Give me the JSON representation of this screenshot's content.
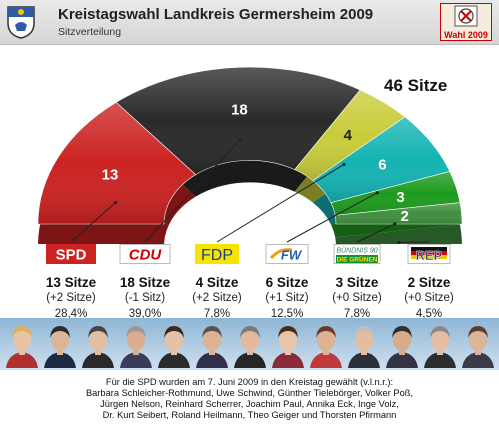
{
  "header": {
    "title": "Kreistagswahl Landkreis Germersheim 2009",
    "subtitle": "Sitzverteilung",
    "logo_text": "Wahl 2009"
  },
  "chart_data": {
    "type": "pie",
    "total_label": "46 Sitze",
    "series": [
      {
        "name": "SPD",
        "value": 13,
        "color": "#cc2222",
        "seats_label": "13 Sitze",
        "change_label": "(+2 Sitze)",
        "pct_label": "28,4%"
      },
      {
        "name": "CDU",
        "value": 18,
        "color": "#2a2a2a",
        "seats_label": "18 Sitze",
        "change_label": "(-1 Sitz)",
        "pct_label": "39,0%"
      },
      {
        "name": "FDP",
        "value": 4,
        "color": "#c8cc3a",
        "seats_label": "4 Sitze",
        "change_label": "(+2 Sitze)",
        "pct_label": "7,8%"
      },
      {
        "name": "FW",
        "value": 6,
        "color": "#15b3b3",
        "seats_label": "6 Sitze",
        "change_label": "(+1 Sitz)",
        "pct_label": "12,5%"
      },
      {
        "name": "Bündnis 90 / Die Grünen",
        "value": 3,
        "color": "#1e9b1e",
        "seats_label": "3 Sitze",
        "change_label": "(+0 Sitze)",
        "pct_label": "7,8%"
      },
      {
        "name": "REP",
        "value": 2,
        "color": "#3f8f3f",
        "seats_label": "2 Sitze",
        "change_label": "(+0 Sitze)",
        "pct_label": "4,5%"
      }
    ]
  },
  "logos": {
    "spd": "SPD",
    "cdu": "CDU",
    "fdp": "FDP",
    "fw": "FW",
    "gruene_top": "BÜNDNIS 90",
    "gruene_bottom": "DIE GRÜNEN",
    "rep": "REP"
  },
  "colors": {
    "header_bg": "#dcdcdc",
    "spd": "#cc2222",
    "cdu": "#2a2a2a",
    "fdp": "#c8cc3a",
    "fw": "#15b3b3",
    "gruene": "#1e9b1e",
    "rep": "#3f8f3f"
  },
  "caption": {
    "line1": "Für die SPD wurden am 7. Juni 2009 in den Kreistag gewählt (v.l.n.r.):",
    "line2": "Barbara Schleicher-Rothmund, Uwe Schwind, Günther Tielebörger, Volker Poß,",
    "line3": "Jürgen Nelson, Reinhard Scherrer, Joachim Paul, Annika Eck, Inge Volz,",
    "line4": "Dr. Kurt Seibert, Roland Heilmann, Theo Geiger und Thorsten Pfirmann"
  }
}
